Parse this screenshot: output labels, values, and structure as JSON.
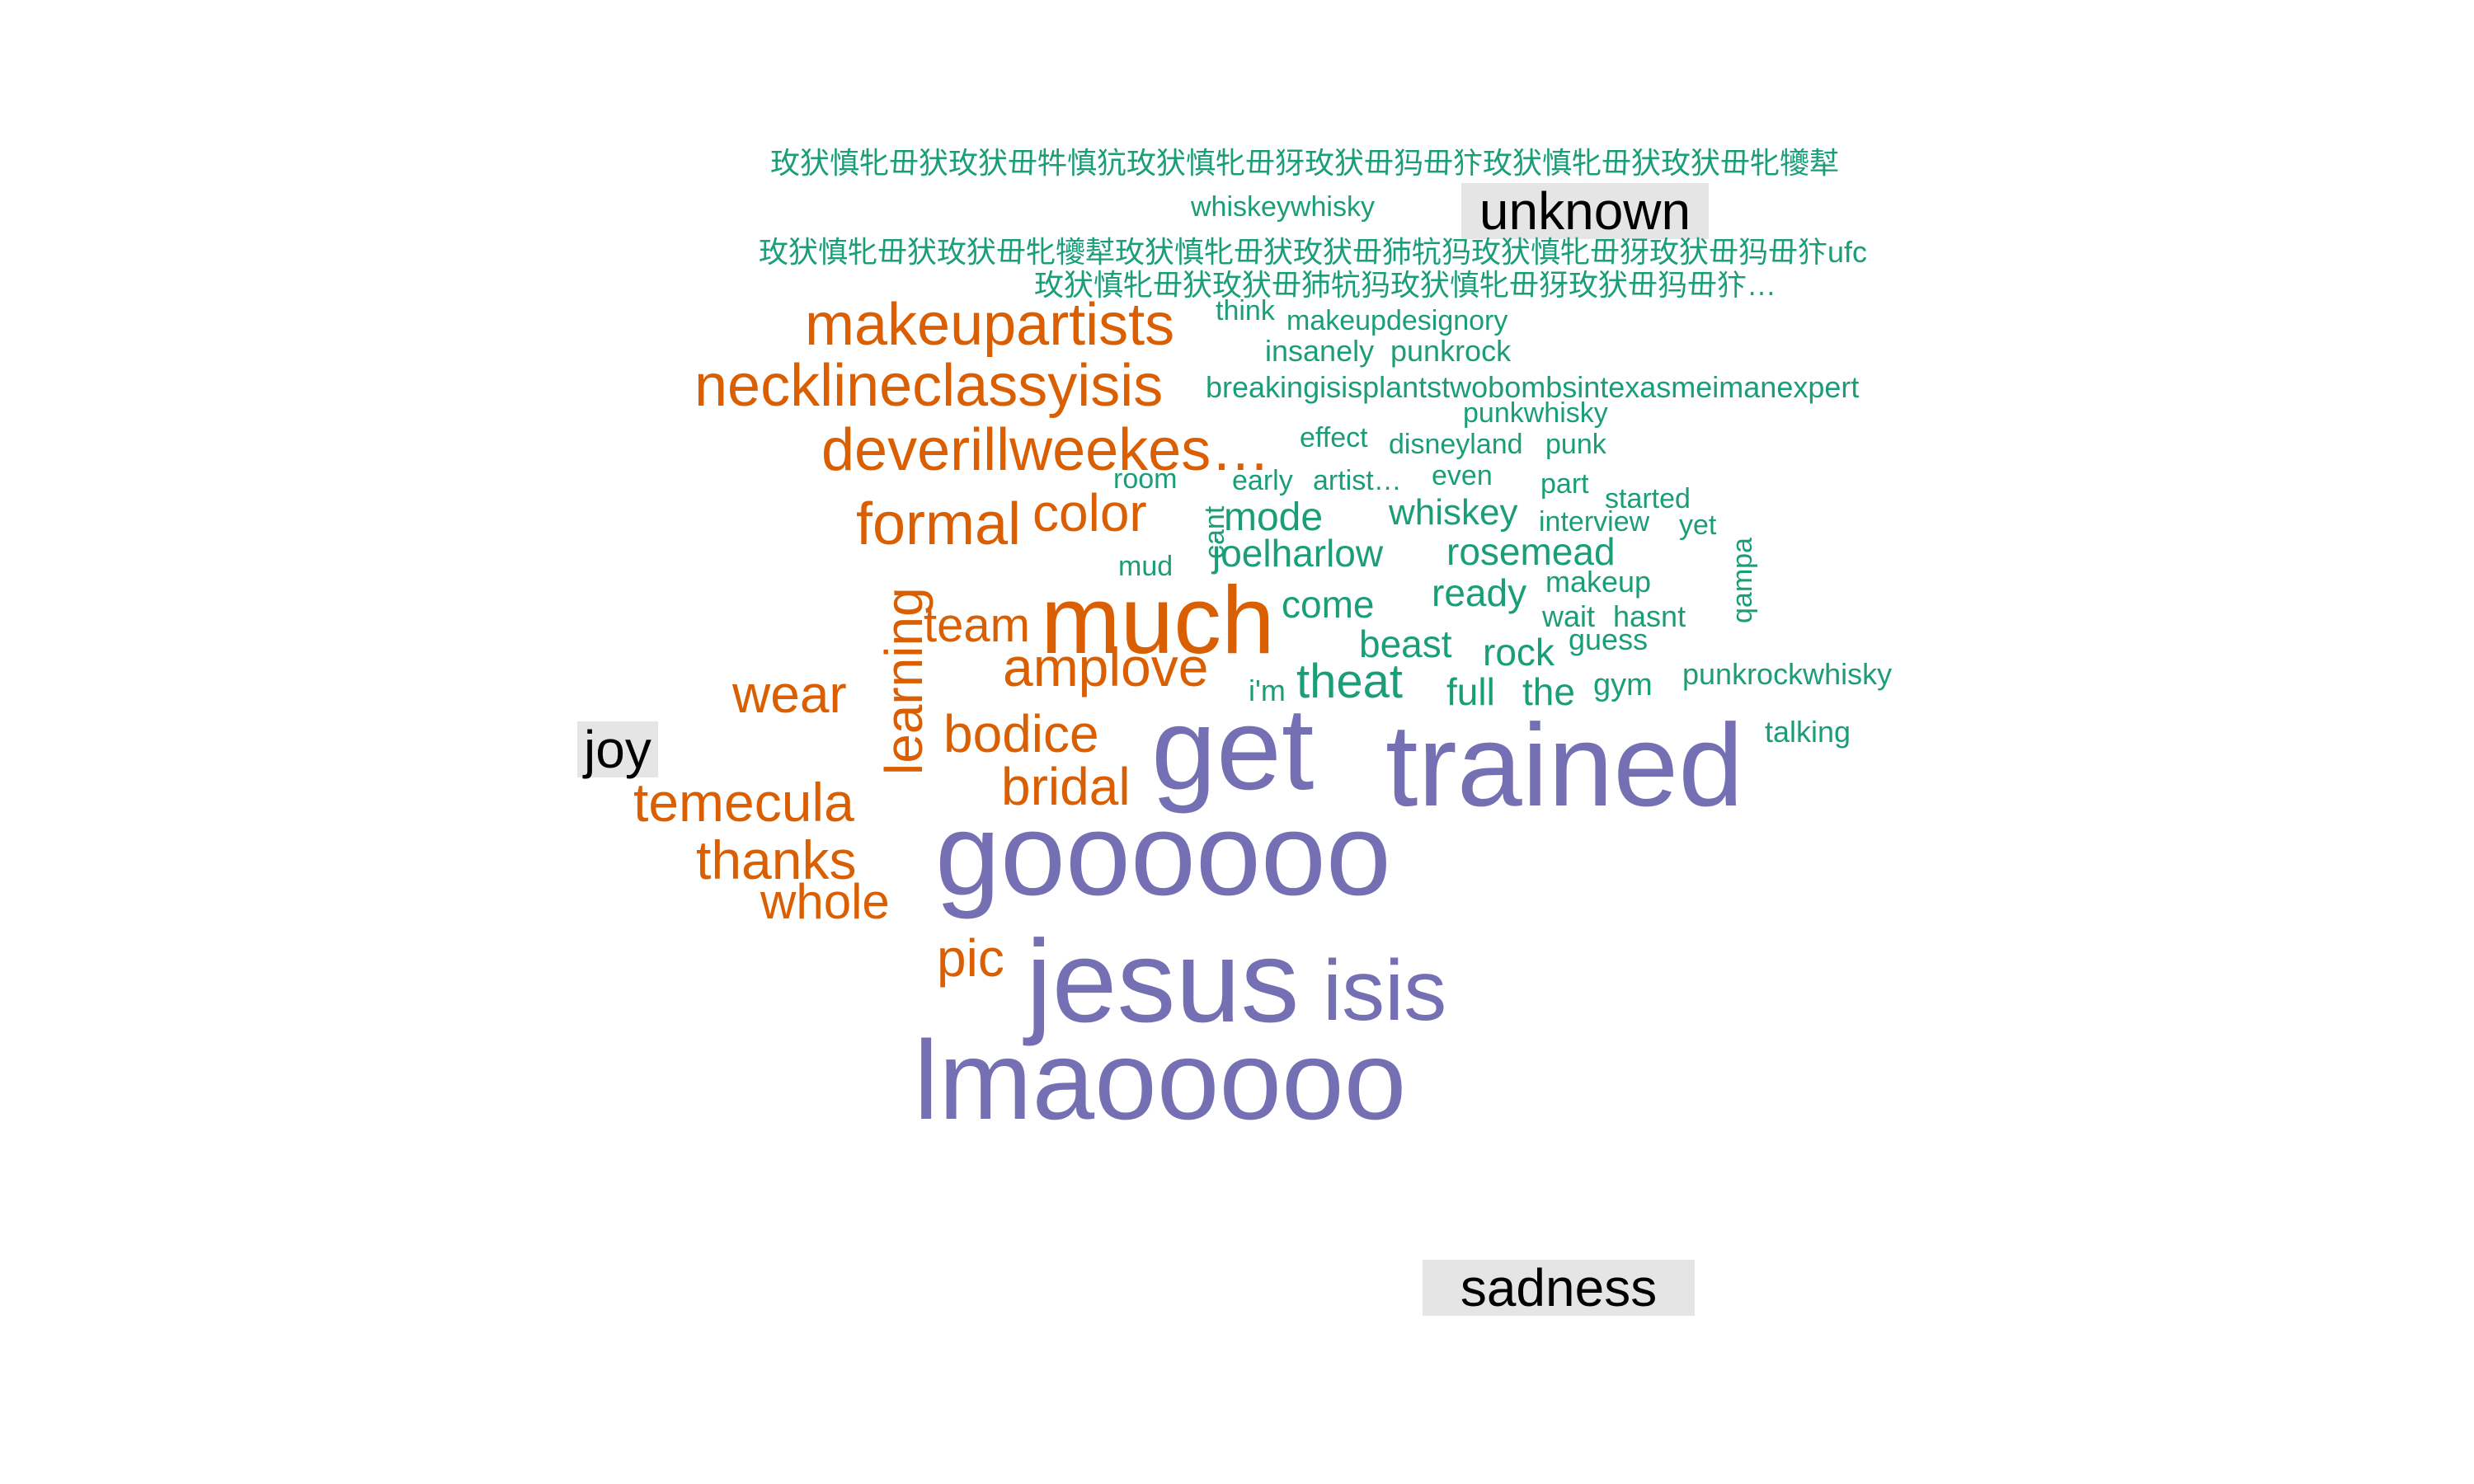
{
  "colors": {
    "unknown": "#1b9e77",
    "joy": "#d95f02",
    "sadness": "#7570b3",
    "label_bg": "#e5e5e5"
  },
  "labels": {
    "unknown": "unknown",
    "joy": "joy",
    "sadness": "sadness"
  },
  "words": {
    "unknown": [
      "玫犾慎牝毌犾玫犾毌牪慎犺玫犾慎牝毌犽玫犾毌犸毌犿玫犾慎牝毌犾玫犾毌牝犪犎",
      "whiskeywhisky",
      "玫犾慎牝毌犾玫犾毌牝犪犎玫犾慎牝毌犾玫犾毌犻牨犸玫犾慎牝毌犽玫犾毌犸毌犿ufc",
      "玫犾慎牝毌犾玫犾毌犻牨犸玫犾慎牝毌犽玫犾毌犸毌犿…",
      "think",
      "makeupdesignory",
      "insanely",
      "punkrock",
      "breakingisisplantstwobombsintexasmeimanexpert",
      "effect",
      "punkwhisky",
      "disneyland",
      "punk",
      "room",
      "early",
      "artist…",
      "even",
      "part",
      "started",
      "whiskey",
      "interview",
      "yet",
      "cant",
      "mode",
      "joelharlow",
      "rosemead",
      "mud",
      "qampa",
      "makeup",
      "come",
      "ready",
      "wait",
      "hasnt",
      "guess",
      "beast",
      "rock",
      "punkrockwhisky",
      "i'm",
      "theat",
      "full",
      "the",
      "gym",
      "talking"
    ],
    "joy": [
      "makeupartists",
      "necklineclassyisis",
      "deverillweekes…",
      "formal",
      "color",
      "learning",
      "much",
      "team",
      "amplove",
      "wear",
      "bodice",
      "bridal",
      "temecula",
      "thanks",
      "whole",
      "pic"
    ],
    "sadness": [
      "get",
      "trained",
      "goooooo",
      "jesus",
      "isis",
      "lmaooooo"
    ]
  }
}
